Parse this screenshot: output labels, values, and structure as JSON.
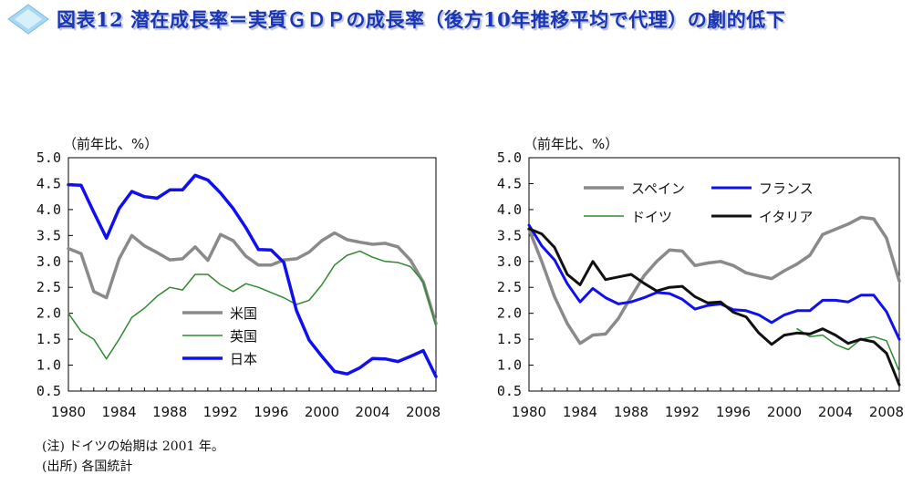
{
  "header": {
    "title": "図表12 潜在成長率＝実質ＧＤＰの成長率（後方10年推移平均で代理）の劇的低下"
  },
  "notes": {
    "note1": "(注) ドイツの始期は 2001 年。",
    "note2": "(出所) 各国統計"
  },
  "chart_data": [
    {
      "type": "line",
      "unit_label": "（前年比、%）",
      "xlim": [
        1980,
        2009
      ],
      "ylim": [
        0.5,
        5.0
      ],
      "x_ticks": [
        "1980",
        "1984",
        "1988",
        "1992",
        "1996",
        "2000",
        "2004",
        "2008"
      ],
      "y_ticks": [
        "5.0",
        "4.5",
        "4.0",
        "3.5",
        "3.0",
        "2.5",
        "2.0",
        "1.5",
        "1.0",
        "0.5"
      ],
      "legend_position": "lower-left",
      "series": [
        {
          "name": "米国",
          "color": "#8a8a8a",
          "width": 3.5,
          "x": [
            1980,
            1981,
            1982,
            1983,
            1984,
            1985,
            1986,
            1987,
            1988,
            1989,
            1990,
            1991,
            1992,
            1993,
            1994,
            1995,
            1996,
            1997,
            1998,
            1999,
            2000,
            2001,
            2002,
            2003,
            2004,
            2005,
            2006,
            2007,
            2008,
            2009
          ],
          "y": [
            3.25,
            3.15,
            2.42,
            2.3,
            3.05,
            3.5,
            3.3,
            3.17,
            3.03,
            3.05,
            3.28,
            3.02,
            3.52,
            3.4,
            3.1,
            2.93,
            2.93,
            3.03,
            3.05,
            3.18,
            3.4,
            3.55,
            3.42,
            3.37,
            3.33,
            3.35,
            3.28,
            3.02,
            2.6,
            1.8
          ]
        },
        {
          "name": "英国",
          "color": "#2f8a2f",
          "width": 1.5,
          "x": [
            1980,
            1981,
            1982,
            1983,
            1984,
            1985,
            1986,
            1987,
            1988,
            1989,
            1990,
            1991,
            1992,
            1993,
            1994,
            1995,
            1996,
            1997,
            1998,
            1999,
            2000,
            2001,
            2002,
            2003,
            2004,
            2005,
            2006,
            2007,
            2008,
            2009
          ],
          "y": [
            2.0,
            1.65,
            1.5,
            1.12,
            1.5,
            1.92,
            2.1,
            2.33,
            2.5,
            2.45,
            2.75,
            2.75,
            2.55,
            2.42,
            2.57,
            2.5,
            2.4,
            2.3,
            2.17,
            2.25,
            2.55,
            2.93,
            3.12,
            3.2,
            3.08,
            3.0,
            2.98,
            2.9,
            2.6,
            1.75
          ]
        },
        {
          "name": "日本",
          "color": "#1010ee",
          "width": 3.5,
          "x": [
            1980,
            1981,
            1982,
            1983,
            1984,
            1985,
            1986,
            1987,
            1988,
            1989,
            1990,
            1991,
            1992,
            1993,
            1994,
            1995,
            1996,
            1997,
            1998,
            1999,
            2000,
            2001,
            2002,
            2003,
            2004,
            2005,
            2006,
            2007,
            2008,
            2009
          ],
          "y": [
            4.48,
            4.47,
            3.95,
            3.45,
            4.02,
            4.35,
            4.25,
            4.22,
            4.38,
            4.38,
            4.66,
            4.57,
            4.32,
            4.02,
            3.65,
            3.23,
            3.22,
            2.98,
            2.05,
            1.48,
            1.17,
            0.88,
            0.83,
            0.95,
            1.13,
            1.12,
            1.07,
            1.17,
            1.28,
            0.78
          ]
        }
      ]
    },
    {
      "type": "line",
      "unit_label": "（前年比、%）",
      "xlim": [
        1980,
        2009
      ],
      "ylim": [
        0.5,
        5.0
      ],
      "x_ticks": [
        "1980",
        "1984",
        "1988",
        "1992",
        "1996",
        "2000",
        "2004",
        "2008"
      ],
      "y_ticks": [
        "5.0",
        "4.5",
        "4.0",
        "3.5",
        "3.0",
        "2.5",
        "2.0",
        "1.5",
        "1.0",
        "0.5"
      ],
      "legend_position": "top",
      "series": [
        {
          "name": "スペイン",
          "color": "#8a8a8a",
          "width": 3.5,
          "x": [
            1980,
            1981,
            1982,
            1983,
            1984,
            1985,
            1986,
            1987,
            1988,
            1989,
            1990,
            1991,
            1992,
            1993,
            1994,
            1995,
            1996,
            1997,
            1998,
            1999,
            2000,
            2001,
            2002,
            2003,
            2004,
            2005,
            2006,
            2007,
            2008,
            2009
          ],
          "y": [
            3.62,
            3.0,
            2.32,
            1.8,
            1.42,
            1.58,
            1.6,
            1.9,
            2.32,
            2.72,
            3.0,
            3.22,
            3.2,
            2.92,
            2.97,
            3.0,
            2.92,
            2.78,
            2.72,
            2.67,
            2.82,
            2.95,
            3.12,
            3.52,
            3.62,
            3.72,
            3.85,
            3.82,
            3.45,
            2.62
          ]
        },
        {
          "name": "フランス",
          "color": "#1010ee",
          "width": 3.0,
          "x": [
            1980,
            1981,
            1982,
            1983,
            1984,
            1985,
            1986,
            1987,
            1988,
            1989,
            1990,
            1991,
            1992,
            1993,
            1994,
            1995,
            1996,
            1997,
            1998,
            1999,
            2000,
            2001,
            2002,
            2003,
            2004,
            2005,
            2006,
            2007,
            2008,
            2009
          ],
          "y": [
            3.7,
            3.3,
            3.03,
            2.57,
            2.22,
            2.48,
            2.3,
            2.18,
            2.22,
            2.3,
            2.4,
            2.38,
            2.27,
            2.08,
            2.15,
            2.18,
            2.07,
            2.05,
            1.97,
            1.82,
            1.97,
            2.05,
            2.05,
            2.25,
            2.25,
            2.22,
            2.35,
            2.35,
            2.03,
            1.5
          ]
        },
        {
          "name": "ドイツ",
          "color": "#2f8a2f",
          "width": 1.5,
          "x": [
            2001,
            2002,
            2003,
            2004,
            2005,
            2006,
            2007,
            2008,
            2009
          ],
          "y": [
            1.7,
            1.55,
            1.58,
            1.4,
            1.3,
            1.5,
            1.55,
            1.47,
            0.88
          ]
        },
        {
          "name": "イタリア",
          "color": "#111111",
          "width": 3.0,
          "x": [
            1980,
            1981,
            1982,
            1983,
            1984,
            1985,
            1986,
            1987,
            1988,
            1989,
            1990,
            1991,
            1992,
            1993,
            1994,
            1995,
            1996,
            1997,
            1998,
            1999,
            2000,
            2001,
            2002,
            2003,
            2004,
            2005,
            2006,
            2007,
            2008,
            2009
          ],
          "y": [
            3.63,
            3.53,
            3.27,
            2.75,
            2.55,
            3.0,
            2.65,
            2.7,
            2.75,
            2.58,
            2.43,
            2.5,
            2.52,
            2.32,
            2.2,
            2.22,
            2.02,
            1.93,
            1.62,
            1.4,
            1.58,
            1.62,
            1.6,
            1.7,
            1.58,
            1.42,
            1.5,
            1.45,
            1.23,
            0.62
          ]
        }
      ]
    }
  ]
}
